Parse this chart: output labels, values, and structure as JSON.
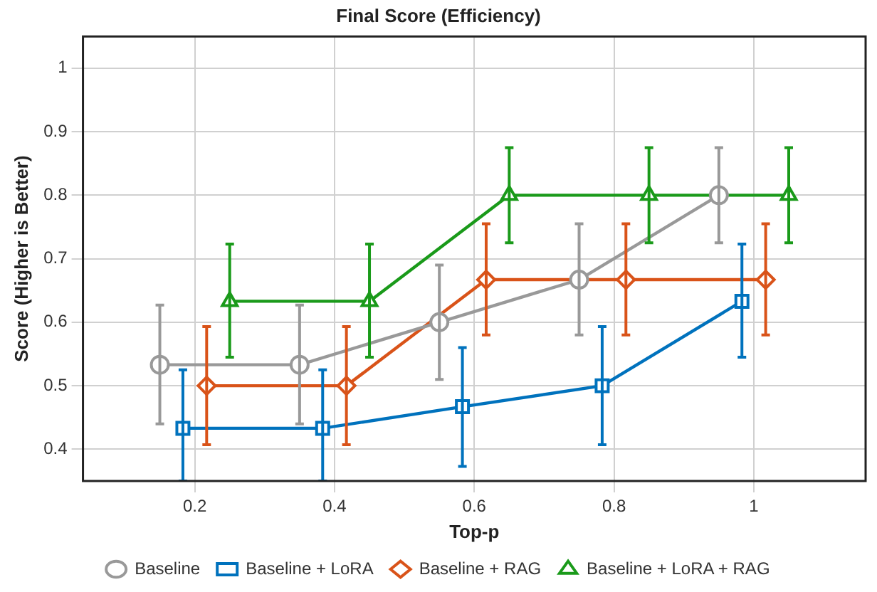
{
  "chart_data": {
    "type": "line",
    "title": "Final Score (Efficiency)",
    "xlabel": "Top-p",
    "ylabel": "Score (Higher is Better)",
    "xlim": [
      0.04,
      1.16
    ],
    "xticks": [
      0.2,
      0.4,
      0.6,
      0.8,
      1
    ],
    "ylim": [
      0.35,
      1.05
    ],
    "yticks": [
      0.4,
      0.5,
      0.6,
      0.7,
      0.8,
      0.9,
      1
    ],
    "grid": true,
    "legend": "bottom",
    "series": [
      {
        "name": "Baseline",
        "color": "#999999",
        "marker": "circle",
        "x": [
          0.15,
          0.35,
          0.55,
          0.75,
          0.95
        ],
        "values": [
          0.533,
          0.533,
          0.6,
          0.667,
          0.8
        ],
        "errors": [
          [
            0.44,
            0.627
          ],
          [
            0.44,
            0.627
          ],
          [
            0.51,
            0.69
          ],
          [
            0.58,
            0.755
          ],
          [
            0.725,
            0.875
          ]
        ]
      },
      {
        "name": "Baseline + LoRA",
        "color": "#0072bd",
        "marker": "square",
        "x": [
          0.183,
          0.383,
          0.583,
          0.783,
          0.983
        ],
        "values": [
          0.433,
          0.433,
          0.467,
          0.5,
          0.633
        ],
        "errors": [
          [
            0.35,
            0.525
          ],
          [
            0.35,
            0.525
          ],
          [
            0.373,
            0.56
          ],
          [
            0.407,
            0.593
          ],
          [
            0.545,
            0.723
          ]
        ]
      },
      {
        "name": "Baseline + RAG",
        "color": "#d95319",
        "marker": "diamond",
        "x": [
          0.217,
          0.417,
          0.617,
          0.817,
          1.017
        ],
        "values": [
          0.5,
          0.5,
          0.667,
          0.667,
          0.667
        ],
        "errors": [
          [
            0.407,
            0.593
          ],
          [
            0.407,
            0.593
          ],
          [
            0.58,
            0.755
          ],
          [
            0.58,
            0.755
          ],
          [
            0.58,
            0.755
          ]
        ]
      },
      {
        "name": "Baseline + LoRA + RAG",
        "color": "#1a9a1a",
        "marker": "triangle",
        "x": [
          0.25,
          0.45,
          0.65,
          0.85,
          1.05
        ],
        "values": [
          0.633,
          0.633,
          0.8,
          0.8,
          0.8
        ],
        "errors": [
          [
            0.545,
            0.723
          ],
          [
            0.545,
            0.723
          ],
          [
            0.725,
            0.875
          ],
          [
            0.725,
            0.875
          ],
          [
            0.725,
            0.875
          ]
        ]
      }
    ]
  }
}
